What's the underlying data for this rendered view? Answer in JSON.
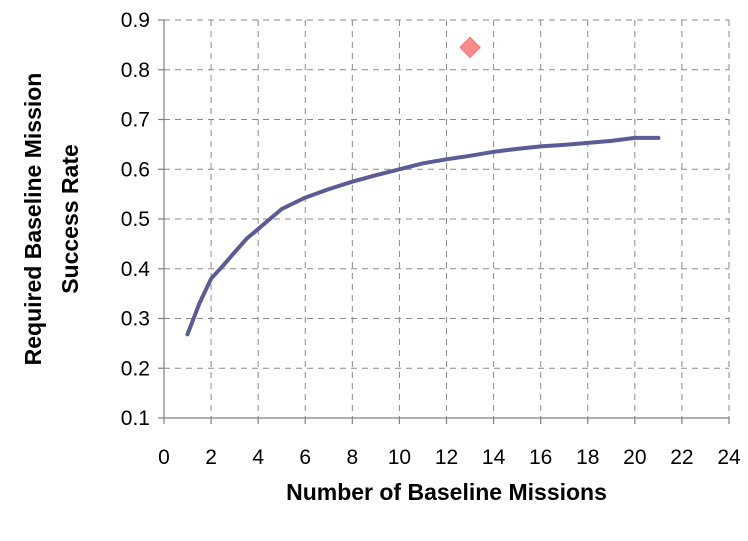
{
  "chart_data": {
    "type": "line",
    "title": "",
    "xlabel": "Number of Baseline Missions",
    "ylabel_lines": [
      "Required Baseline Mission",
      "Success Rate"
    ],
    "xlim": [
      0,
      24
    ],
    "ylim": [
      0.1,
      0.9
    ],
    "xticks": [
      0,
      2,
      4,
      6,
      8,
      10,
      12,
      14,
      16,
      18,
      20,
      22,
      24
    ],
    "yticks": [
      0.1,
      0.2,
      0.3,
      0.4,
      0.5,
      0.6,
      0.7,
      0.8,
      0.9
    ],
    "xtick_labels": [
      "0",
      "2",
      "4",
      "6",
      "8",
      "10",
      "12",
      "14",
      "16",
      "18",
      "20",
      "22",
      "24"
    ],
    "ytick_labels": [
      "0.1",
      "0.2",
      "0.3",
      "0.4",
      "0.5",
      "0.6",
      "0.7",
      "0.8",
      "0.9"
    ],
    "grid": true,
    "grid_style": "dashed",
    "legend": "none",
    "series": [
      {
        "kind": "line",
        "color": "#5b5b95",
        "x": [
          1,
          1.5,
          2,
          2.5,
          3,
          3.5,
          4,
          4.5,
          5,
          6,
          7,
          8,
          9,
          10,
          11,
          12,
          13,
          14,
          15,
          16,
          17,
          18,
          19,
          20,
          21
        ],
        "y": [
          0.268,
          0.33,
          0.38,
          0.406,
          0.433,
          0.46,
          0.48,
          0.5,
          0.52,
          0.543,
          0.56,
          0.575,
          0.588,
          0.6,
          0.612,
          0.62,
          0.627,
          0.635,
          0.641,
          0.646,
          0.649,
          0.653,
          0.657,
          0.663,
          0.663
        ]
      },
      {
        "kind": "scatter",
        "marker": "diamond",
        "color": "#ff8a8a",
        "x": [
          13
        ],
        "y": [
          0.845
        ]
      }
    ]
  }
}
